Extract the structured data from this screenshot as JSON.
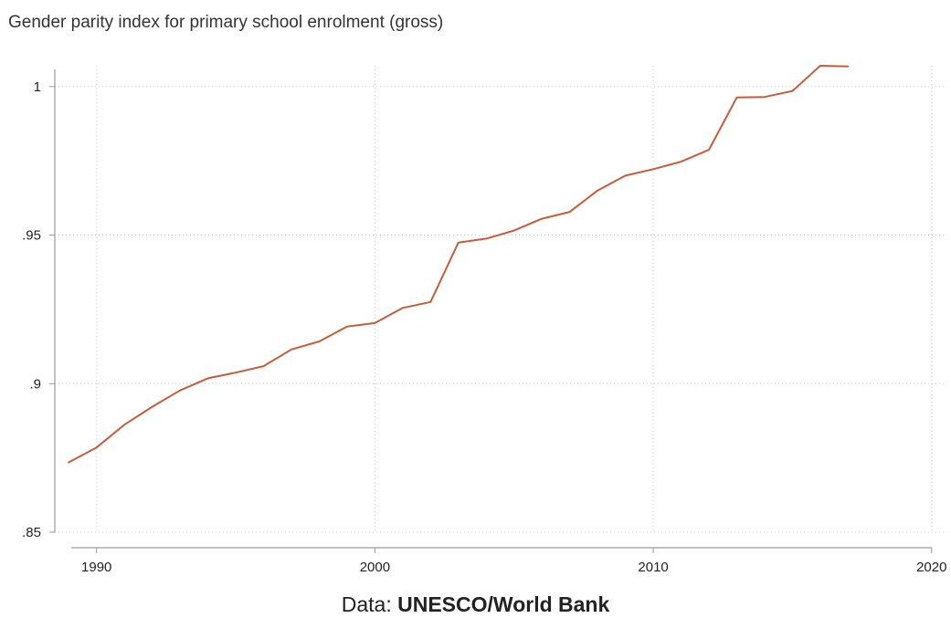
{
  "chart_data": {
    "type": "line",
    "title": "Gender parity index for primary school enrolment (gross)",
    "xlabel": "",
    "ylabel": "",
    "xlim": [
      1988.5,
      2020.5
    ],
    "ylim": [
      0.85,
      1.007
    ],
    "x_ticks": [
      1990,
      2000,
      2010,
      2020
    ],
    "x_tick_labels": [
      "1990",
      "2000",
      "2010",
      "2020"
    ],
    "y_ticks": [
      0.85,
      0.9,
      0.95,
      1.0
    ],
    "y_tick_labels": [
      ".85",
      ".9",
      ".95",
      "1"
    ],
    "grid": true,
    "series_color": "#c65c3b",
    "series": [
      {
        "x": [
          1989,
          1990,
          1991,
          1992,
          1993,
          1994,
          1995,
          1996,
          1997,
          1998,
          1999,
          2000,
          2001,
          2002,
          2003,
          2004,
          2005,
          2006,
          2007,
          2008,
          2009,
          2010,
          2011,
          2012,
          2013,
          2014,
          2015,
          2016,
          2017
        ],
        "values": [
          0.8735,
          0.8785,
          0.8862,
          0.8922,
          0.8977,
          0.9018,
          0.9037,
          0.9059,
          0.9115,
          0.9142,
          0.9192,
          0.9204,
          0.9255,
          0.9275,
          0.9475,
          0.9488,
          0.9515,
          0.9555,
          0.9578,
          0.965,
          0.97,
          0.9722,
          0.9747,
          0.9787,
          0.9963,
          0.9965,
          0.9985,
          1.007,
          1.0068
        ]
      }
    ]
  },
  "source": {
    "prefix": "Data: ",
    "name": "UNESCO/World Bank"
  }
}
